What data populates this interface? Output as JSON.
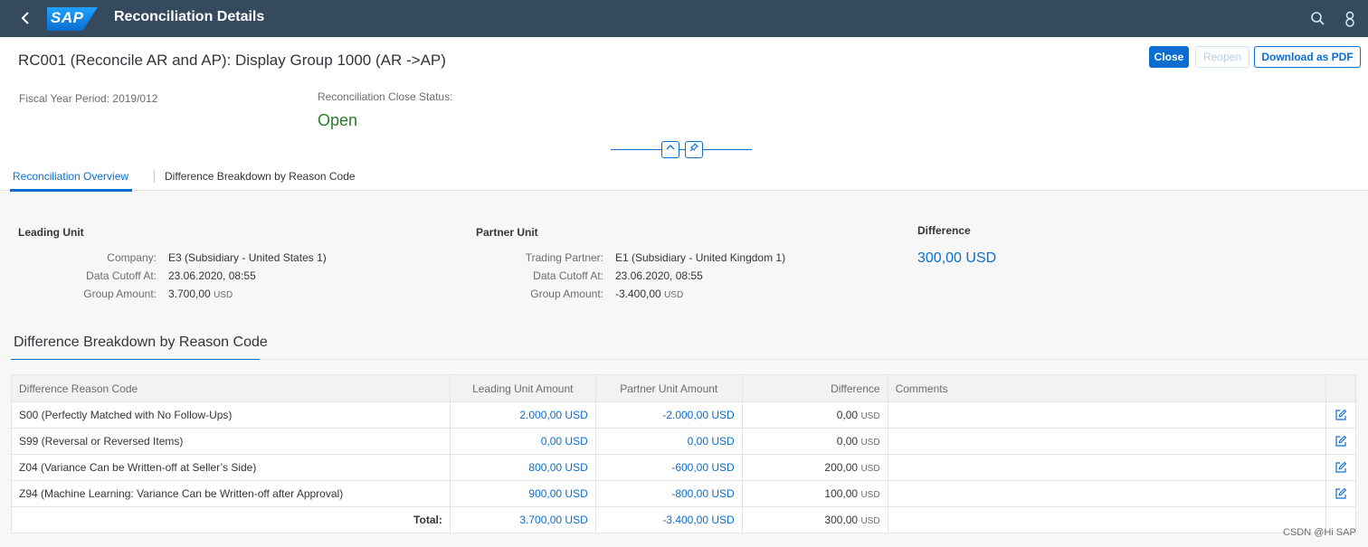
{
  "shell": {
    "logo_text": "SAP",
    "title": "Reconciliation Details",
    "icons": [
      "back-icon",
      "search-icon",
      "user-icon"
    ]
  },
  "header": {
    "title": "RC001 (Reconcile AR and AP): Display Group 1000 (AR ->AP)",
    "buttons": {
      "close": "Close",
      "reopen": "Reopen",
      "download": "Download as PDF"
    },
    "fiscal_period": "Fiscal Year Period: 2019/012",
    "status_label": "Reconciliation Close Status:",
    "status_value": "Open",
    "status_color": "#2b7d2b"
  },
  "tabs": [
    "Reconciliation Overview",
    "Difference Breakdown by Reason Code"
  ],
  "leading_unit": {
    "heading": "Leading Unit",
    "company_label": "Company:",
    "company": "E3 (Subsidiary - United States 1)",
    "cutoff_label": "Data Cutoff At:",
    "cutoff": "23.06.2020, 08:55",
    "amount_label": "Group Amount:",
    "amount": "3.700,00",
    "amount_unit": "USD"
  },
  "partner_unit": {
    "heading": "Partner Unit",
    "partner_label": "Trading Partner:",
    "partner": "E1 (Subsidiary - United Kingdom 1)",
    "cutoff_label": "Data Cutoff At:",
    "cutoff": "23.06.2020, 08:55",
    "amount_label": "Group Amount:",
    "amount": "-3.400,00",
    "amount_unit": "USD"
  },
  "difference": {
    "heading": "Difference",
    "value": "300,00 USD"
  },
  "breakdown": {
    "title": "Difference Breakdown by Reason Code",
    "columns": [
      "Difference Reason Code",
      "Leading Unit Amount",
      "Partner Unit Amount",
      "Difference",
      "Comments"
    ],
    "rows": [
      {
        "reason": "S00 (Perfectly Matched with No Follow-Ups)",
        "leading": "2.000,00 USD",
        "partner": "-2.000,00 USD",
        "diff": "0,00",
        "diff_unit": "USD",
        "comments": ""
      },
      {
        "reason": "S99 (Reversal or Reversed Items)",
        "leading": "0,00 USD",
        "partner": "0,00 USD",
        "diff": "0,00",
        "diff_unit": "USD",
        "comments": ""
      },
      {
        "reason": "Z04 (Variance Can be Written-off at Seller’s Side)",
        "leading": "800,00 USD",
        "partner": "-600,00 USD",
        "diff": "200,00",
        "diff_unit": "USD",
        "comments": ""
      },
      {
        "reason": "Z94 (Machine Learning: Variance Can be Written-off after Approval)",
        "leading": "900,00 USD",
        "partner": "-800,00 USD",
        "diff": "100,00",
        "diff_unit": "USD",
        "comments": ""
      }
    ],
    "total": {
      "label": "Total:",
      "leading": "3.700,00 USD",
      "partner": "-3.400,00 USD",
      "diff": "300,00",
      "diff_unit": "USD"
    }
  },
  "watermark": "CSDN @Hi SAP",
  "accent_color": "#0a6ed1"
}
